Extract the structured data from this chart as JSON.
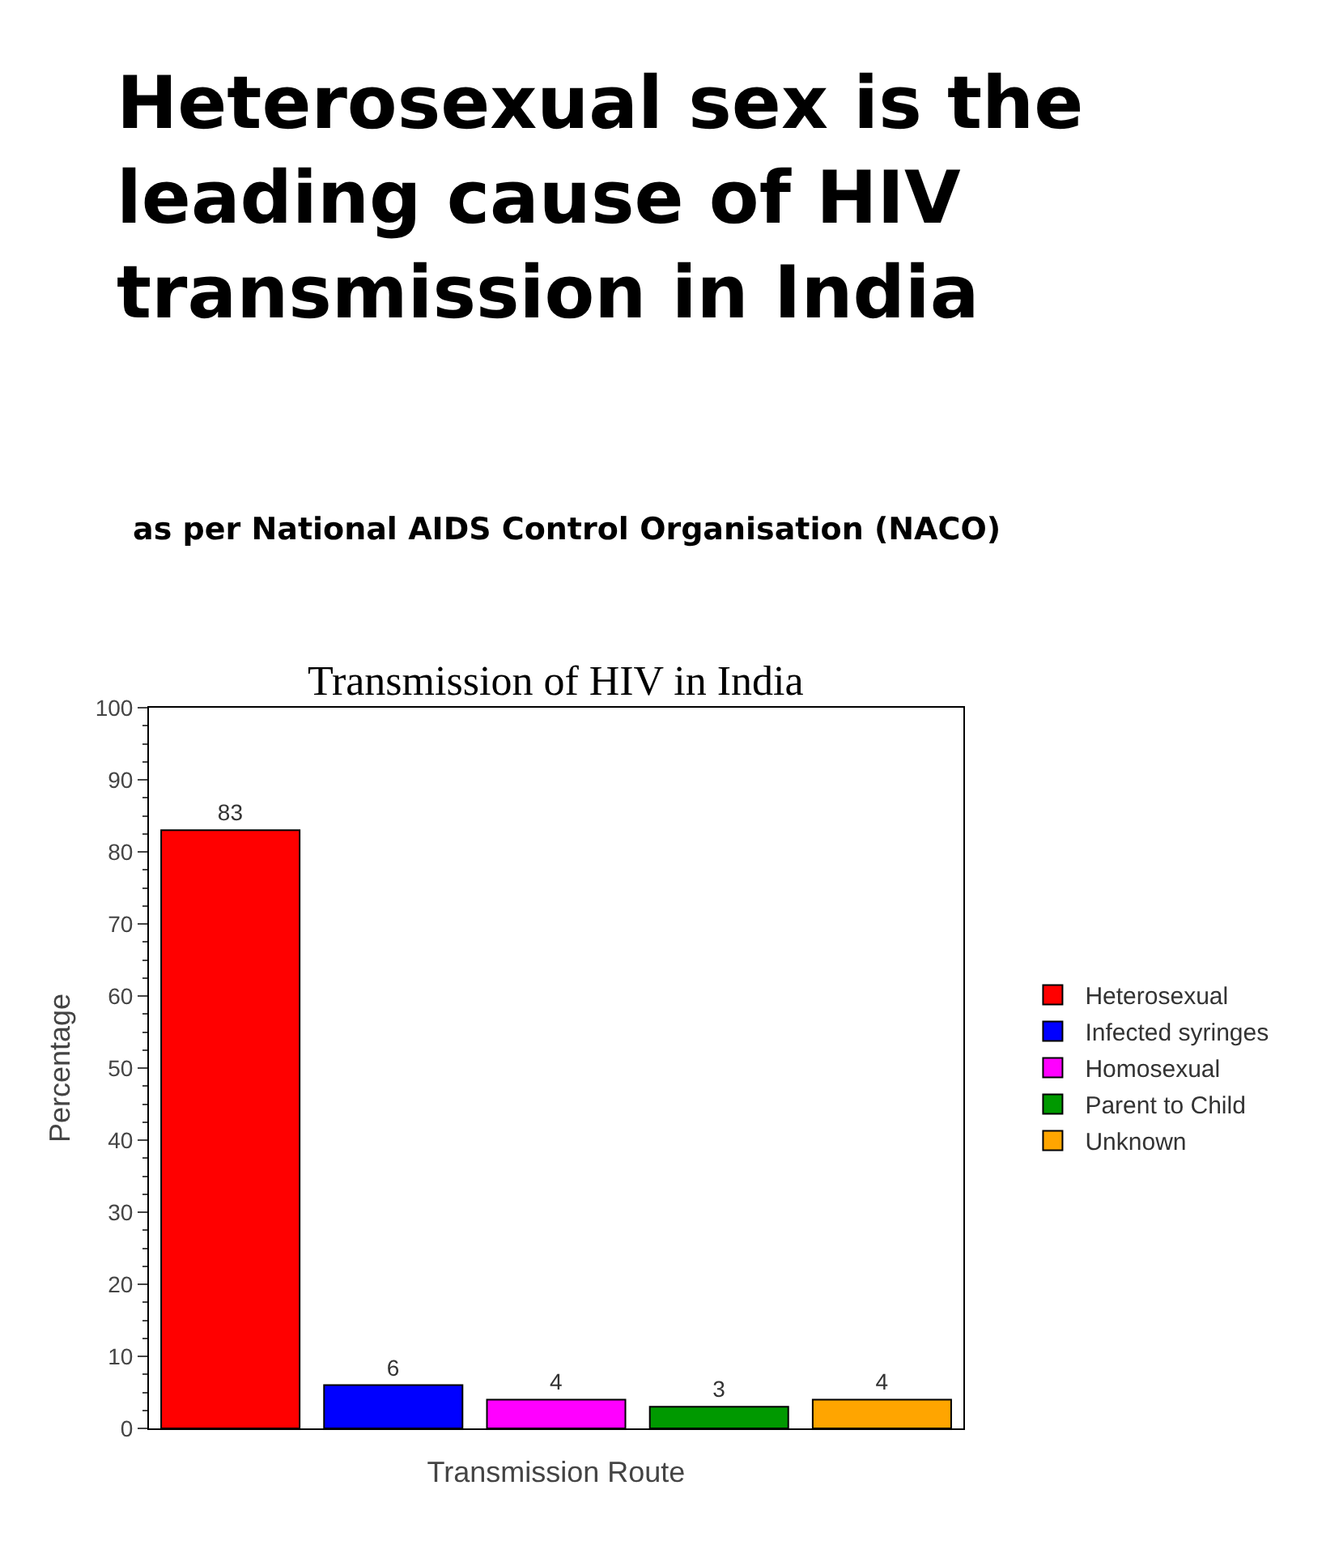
{
  "chart_data": {
    "type": "bar",
    "title": "Heterosexual sex is the leading cause of HIV transmission in India",
    "subtitle": "as per National AIDS Control Organisation (NACO)",
    "annotations": [
      "Transmission of HIV in India"
    ],
    "xlabel": "Transmission Route",
    "ylabel": "Percentage",
    "categories": [
      null,
      null,
      null,
      null,
      null
    ],
    "series": [
      {
        "name": "Heterosexual",
        "color": "#ff0000",
        "values": [
          83,
          null,
          null,
          null,
          null
        ]
      },
      {
        "name": "Infected syringes",
        "color": "#0000ff",
        "values": [
          null,
          6,
          null,
          null,
          null
        ]
      },
      {
        "name": "Homosexual",
        "color": "#ff00ff",
        "values": [
          null,
          null,
          4,
          null,
          null
        ]
      },
      {
        "name": "Parent to Child",
        "color": "#009900",
        "values": [
          null,
          null,
          null,
          3,
          null
        ]
      },
      {
        "name": "Unknown",
        "color": "#ffa500",
        "values": [
          null,
          null,
          null,
          null,
          4
        ]
      }
    ],
    "ylim": [
      0,
      100
    ],
    "yticks": [
      0,
      10,
      20,
      30,
      40,
      50,
      60,
      70,
      80,
      90,
      100
    ],
    "data_labels": true,
    "legend": "right",
    "tick_labels": "y"
  }
}
